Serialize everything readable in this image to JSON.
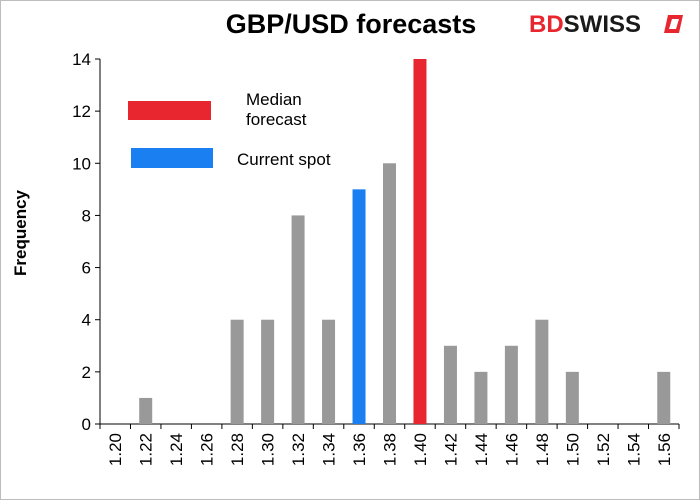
{
  "logo": {
    "part1": "BD",
    "part2": "SWISS"
  },
  "colors": {
    "default_bar": "#999999",
    "median_bar": "#e8262f",
    "spot_bar": "#1a7ff0",
    "axis": "#000000"
  },
  "legend": [
    {
      "lines": [
        "Median",
        "forecast"
      ],
      "color": "#e8262f"
    },
    {
      "lines": [
        "Current spot"
      ],
      "color": "#1a7ff0"
    }
  ],
  "chart_data": {
    "type": "bar",
    "title": "GBP/USD forecasts",
    "xlabel": "",
    "ylabel": "Frequency",
    "ylim": [
      0,
      14
    ],
    "yticks": [
      0,
      2,
      4,
      6,
      8,
      10,
      12,
      14
    ],
    "grid": false,
    "categories": [
      "1.20",
      "1.22",
      "1.24",
      "1.26",
      "1.28",
      "1.30",
      "1.32",
      "1.34",
      "1.36",
      "1.38",
      "1.40",
      "1.42",
      "1.44",
      "1.46",
      "1.48",
      "1.50",
      "1.52",
      "1.54",
      "1.56"
    ],
    "values": [
      0,
      1,
      0,
      0,
      4,
      4,
      8,
      4,
      9,
      10,
      14,
      3,
      2,
      3,
      4,
      2,
      0,
      0,
      2
    ],
    "highlights": {
      "median": "1.40",
      "current_spot": "1.36"
    }
  }
}
